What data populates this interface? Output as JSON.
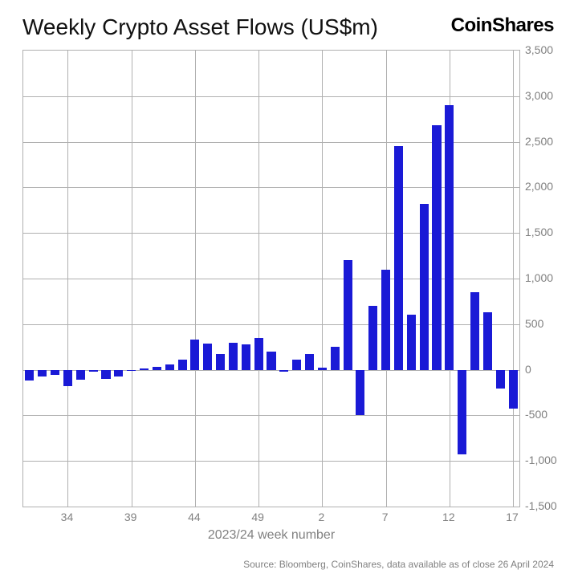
{
  "title": "Weekly Crypto Asset Flows (US$m)",
  "brand": "CoinShares",
  "xaxis_title": "2023/24 week number",
  "source": "Source: Bloomberg, CoinShares, data available as of close 26 April 2024",
  "chart": {
    "type": "bar",
    "bar_color": "#1a1ad6",
    "background_color": "#ffffff",
    "grid_color": "#b0b0b0",
    "border_color": "#b0b0b0",
    "text_color": "#808080",
    "title_color": "#111111",
    "title_fontsize": 28,
    "brand_fontsize": 24,
    "label_fontsize": 14,
    "axis_title_fontsize": 16,
    "source_fontsize": 12,
    "bar_width_ratio": 0.7,
    "ymin": -1500,
    "ymax": 3500,
    "ytick_step": 500,
    "ytick_labels": [
      "-1,500",
      "-1,000",
      "-500",
      "0",
      "500",
      "1,000",
      "1,500",
      "2,000",
      "2,500",
      "3,000",
      "3,500"
    ],
    "x_weeks": [
      31,
      32,
      33,
      34,
      35,
      36,
      37,
      38,
      39,
      40,
      41,
      42,
      43,
      44,
      45,
      46,
      47,
      48,
      49,
      50,
      51,
      52,
      1,
      2,
      3,
      4,
      5,
      6,
      7,
      8,
      9,
      10,
      11,
      12,
      13,
      14,
      15,
      16,
      17
    ],
    "x_tick_weeks": [
      34,
      39,
      44,
      49,
      2,
      7,
      12,
      17
    ],
    "x_tick_labels": [
      "34",
      "39",
      "44",
      "49",
      "2",
      "7",
      "12",
      "17"
    ],
    "values": [
      -120,
      -70,
      -60,
      -180,
      -110,
      -20,
      -100,
      -70,
      -10,
      15,
      30,
      60,
      110,
      330,
      290,
      170,
      300,
      280,
      350,
      200,
      -20,
      110,
      170,
      25,
      250,
      1200,
      -500,
      700,
      1100,
      2450,
      600,
      1820,
      2680,
      2900,
      -930,
      850,
      630,
      -210,
      -430
    ]
  }
}
